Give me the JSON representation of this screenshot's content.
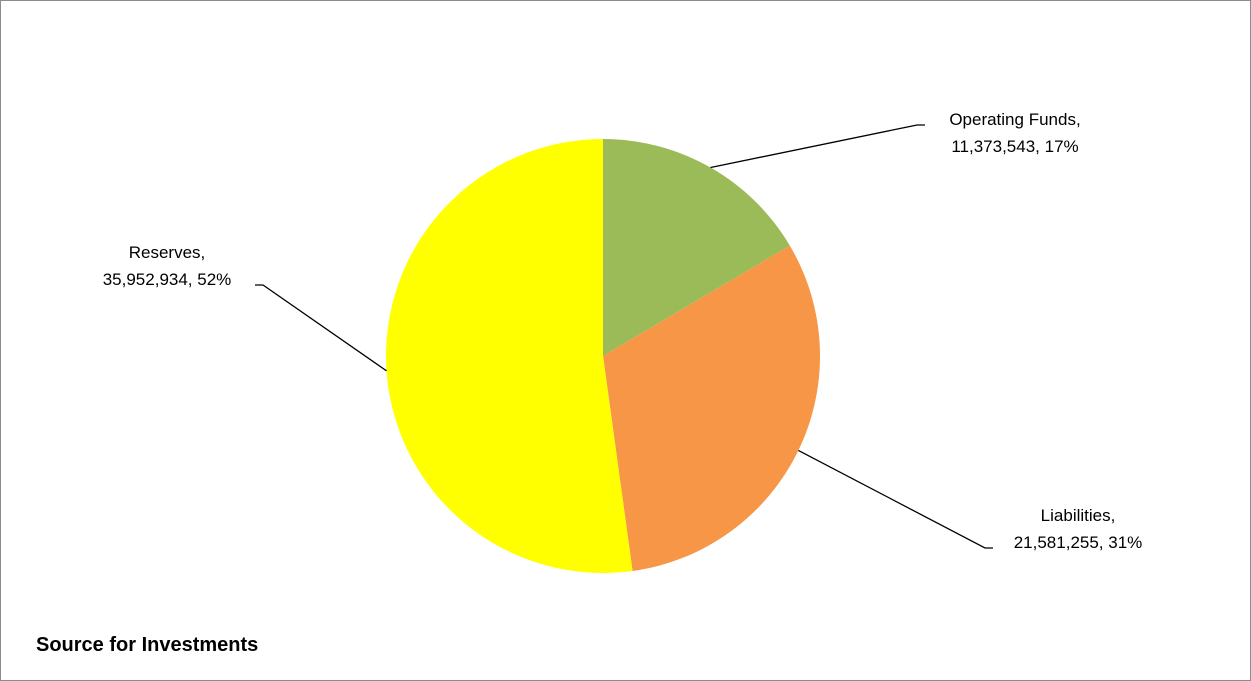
{
  "chart_data": {
    "type": "pie",
    "title": "Source for Investments",
    "slices": [
      {
        "name": "Operating Funds",
        "value": 11373543,
        "value_label": "11,373,543",
        "percent_label": "17%",
        "color": "#9BBB59"
      },
      {
        "name": "Liabilities",
        "value": 21581255,
        "value_label": "21,581,255",
        "percent_label": "31%",
        "color": "#F79646"
      },
      {
        "name": "Reserves",
        "value": 35952934,
        "value_label": "35,952,934",
        "percent_label": "52%",
        "color": "#FFFF00"
      }
    ],
    "start_angle_deg": 0,
    "direction": "clockwise",
    "legend": "none",
    "data_labels": "outside-with-leader-lines"
  }
}
